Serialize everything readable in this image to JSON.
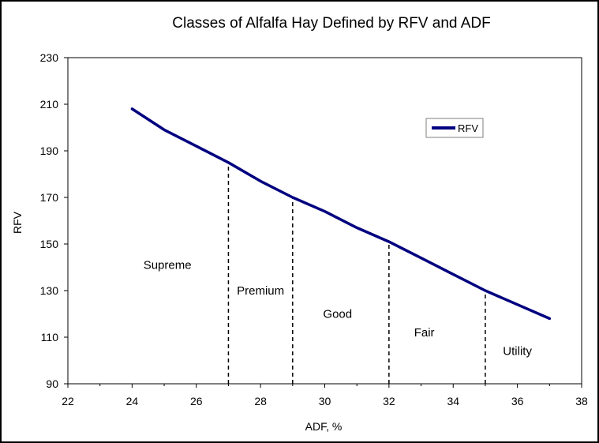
{
  "chart_data": {
    "type": "line",
    "title": "Classes of Alfalfa Hay Defined by RFV and ADF",
    "xlabel": "ADF, %",
    "ylabel": "RFV",
    "xlim": [
      22,
      38
    ],
    "ylim": [
      90,
      230
    ],
    "x_ticks": [
      "22",
      "24",
      "26",
      "28",
      "30",
      "32",
      "34",
      "36",
      "38"
    ],
    "y_ticks": [
      "90",
      "110",
      "130",
      "150",
      "170",
      "190",
      "210",
      "230"
    ],
    "grid": false,
    "legend_position": "top-right",
    "series": [
      {
        "name": "RFV",
        "color": "#000080",
        "x": [
          24,
          25,
          26,
          27,
          28,
          29,
          30,
          31,
          32,
          33,
          34,
          35,
          36,
          37
        ],
        "y": [
          208,
          199,
          192,
          185,
          177,
          170,
          164,
          157,
          151,
          144,
          137,
          130,
          124,
          118
        ]
      }
    ],
    "boundaries": [
      {
        "x": 27,
        "y": 185
      },
      {
        "x": 29,
        "y": 170
      },
      {
        "x": 32,
        "y": 151
      },
      {
        "x": 35,
        "y": 130
      }
    ],
    "regions": [
      {
        "label": "Supreme",
        "x": 25.1,
        "y": 141
      },
      {
        "label": "Premium",
        "x": 28,
        "y": 130
      },
      {
        "label": "Good",
        "x": 30.4,
        "y": 120
      },
      {
        "label": "Fair",
        "x": 33.1,
        "y": 112
      },
      {
        "label": "Utility",
        "x": 36,
        "y": 104
      }
    ]
  }
}
